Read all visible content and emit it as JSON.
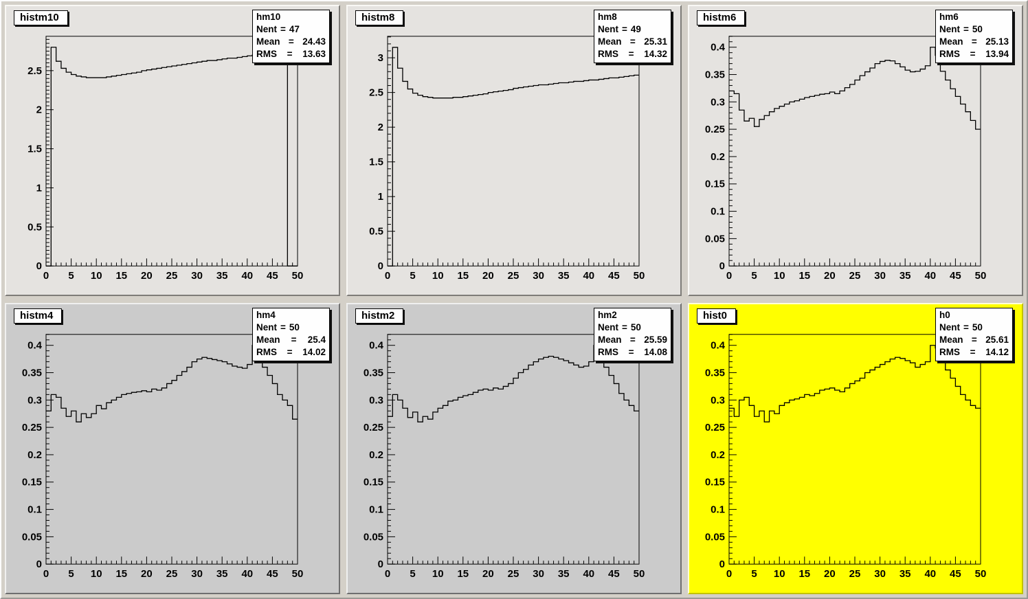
{
  "canvas": {
    "background": "#d4d0c8",
    "highlight_pad_color": "#ffff00",
    "line_color": "#000000",
    "box_background": "#ffffff"
  },
  "stats_labels": {
    "entries": "Nent",
    "mean": "Mean",
    "rms": "RMS",
    "eq": "="
  },
  "chart_data": [
    {
      "type": "line",
      "style": "step-histogram",
      "title": "histm10",
      "variant": "light",
      "stats": {
        "name": "hm10",
        "entries": "47",
        "mean": "24.43",
        "rms": "13.63"
      },
      "xlabel": "",
      "ylabel": "",
      "grid": false,
      "x": {
        "min": 0,
        "max": 50,
        "minor": 1,
        "major": 5,
        "labels": [
          [
            0,
            "0"
          ],
          [
            5,
            "5"
          ],
          [
            10,
            "10"
          ],
          [
            15,
            "15"
          ],
          [
            20,
            "20"
          ],
          [
            25,
            "25"
          ],
          [
            30,
            "30"
          ],
          [
            35,
            "35"
          ],
          [
            40,
            "40"
          ],
          [
            45,
            "45"
          ],
          [
            50,
            "50"
          ]
        ]
      },
      "y": {
        "min": 0,
        "max": 2.94,
        "minor": 0.05,
        "major": 0.5,
        "labels": [
          [
            0,
            "0"
          ],
          [
            0.5,
            "0.5"
          ],
          [
            1,
            "1"
          ],
          [
            1.5,
            "1.5"
          ],
          [
            2,
            "2"
          ],
          [
            2.5,
            "2.5"
          ]
        ]
      },
      "bins": [
        0,
        2.8,
        2.62,
        2.53,
        2.48,
        2.45,
        2.43,
        2.42,
        2.41,
        2.41,
        2.41,
        2.41,
        2.42,
        2.43,
        2.44,
        2.45,
        2.46,
        2.47,
        2.48,
        2.5,
        2.51,
        2.52,
        2.53,
        2.54,
        2.55,
        2.56,
        2.57,
        2.58,
        2.59,
        2.6,
        2.61,
        2.62,
        2.63,
        2.63,
        2.64,
        2.65,
        2.66,
        2.66,
        2.67,
        2.68,
        2.69,
        2.7,
        2.71,
        2.72,
        2.73,
        2.74,
        2.75,
        2.76,
        0,
        0
      ]
    },
    {
      "type": "line",
      "style": "step-histogram",
      "title": "histm8",
      "variant": "light",
      "stats": {
        "name": "hm8",
        "entries": "49",
        "mean": "25.31",
        "rms": "14.32"
      },
      "xlabel": "",
      "ylabel": "",
      "grid": false,
      "x": {
        "min": 0,
        "max": 50,
        "minor": 1,
        "major": 5,
        "labels": [
          [
            0,
            "0"
          ],
          [
            5,
            "5"
          ],
          [
            10,
            "10"
          ],
          [
            15,
            "15"
          ],
          [
            20,
            "20"
          ],
          [
            25,
            "25"
          ],
          [
            30,
            "30"
          ],
          [
            35,
            "35"
          ],
          [
            40,
            "40"
          ],
          [
            45,
            "45"
          ],
          [
            50,
            "50"
          ]
        ]
      },
      "y": {
        "min": 0,
        "max": 3.31,
        "minor": 0.1,
        "major": 0.5,
        "labels": [
          [
            0,
            "0"
          ],
          [
            0.5,
            "0.5"
          ],
          [
            1,
            "1"
          ],
          [
            1.5,
            "1.5"
          ],
          [
            2,
            "2"
          ],
          [
            2.5,
            "2.5"
          ],
          [
            3,
            "3"
          ]
        ]
      },
      "bins": [
        0,
        3.15,
        2.85,
        2.66,
        2.55,
        2.49,
        2.46,
        2.44,
        2.43,
        2.42,
        2.42,
        2.42,
        2.42,
        2.43,
        2.43,
        2.44,
        2.45,
        2.46,
        2.47,
        2.48,
        2.5,
        2.51,
        2.52,
        2.53,
        2.54,
        2.56,
        2.57,
        2.58,
        2.59,
        2.6,
        2.61,
        2.61,
        2.62,
        2.63,
        2.64,
        2.64,
        2.65,
        2.66,
        2.66,
        2.67,
        2.68,
        2.68,
        2.69,
        2.7,
        2.71,
        2.71,
        2.72,
        2.73,
        2.74,
        2.75
      ]
    },
    {
      "type": "line",
      "style": "step-histogram",
      "title": "histm6",
      "variant": "light",
      "stats": {
        "name": "hm6",
        "entries": "50",
        "mean": "25.13",
        "rms": "13.94"
      },
      "xlabel": "",
      "ylabel": "",
      "grid": false,
      "x": {
        "min": 0,
        "max": 50,
        "minor": 1,
        "major": 5,
        "labels": [
          [
            0,
            "0"
          ],
          [
            5,
            "5"
          ],
          [
            10,
            "10"
          ],
          [
            15,
            "15"
          ],
          [
            20,
            "20"
          ],
          [
            25,
            "25"
          ],
          [
            30,
            "30"
          ],
          [
            35,
            "35"
          ],
          [
            40,
            "40"
          ],
          [
            45,
            "45"
          ],
          [
            50,
            "50"
          ]
        ]
      },
      "y": {
        "min": 0,
        "max": 0.42,
        "minor": 0.01,
        "major": 0.05,
        "labels": [
          [
            0,
            "0"
          ],
          [
            0.05,
            "0.05"
          ],
          [
            0.1,
            "0.1"
          ],
          [
            0.15,
            "0.15"
          ],
          [
            0.2,
            "0.2"
          ],
          [
            0.25,
            "0.25"
          ],
          [
            0.3,
            "0.3"
          ],
          [
            0.35,
            "0.35"
          ],
          [
            0.4,
            "0.4"
          ]
        ]
      },
      "bins": [
        0.32,
        0.315,
        0.285,
        0.265,
        0.27,
        0.255,
        0.268,
        0.275,
        0.282,
        0.288,
        0.292,
        0.296,
        0.3,
        0.302,
        0.305,
        0.308,
        0.31,
        0.312,
        0.314,
        0.315,
        0.318,
        0.315,
        0.32,
        0.326,
        0.332,
        0.34,
        0.348,
        0.355,
        0.362,
        0.37,
        0.374,
        0.376,
        0.375,
        0.37,
        0.364,
        0.358,
        0.355,
        0.356,
        0.36,
        0.366,
        0.4,
        0.385,
        0.356,
        0.34,
        0.324,
        0.31,
        0.296,
        0.282,
        0.266,
        0.25
      ]
    },
    {
      "type": "line",
      "style": "step-histogram",
      "title": "histm4",
      "variant": "mid",
      "stats": {
        "name": "hm4",
        "entries": "50",
        "mean": "25.4",
        "rms": "14.02"
      },
      "xlabel": "",
      "ylabel": "",
      "grid": false,
      "x": {
        "min": 0,
        "max": 50,
        "minor": 1,
        "major": 5,
        "labels": [
          [
            0,
            "0"
          ],
          [
            5,
            "5"
          ],
          [
            10,
            "10"
          ],
          [
            15,
            "15"
          ],
          [
            20,
            "20"
          ],
          [
            25,
            "25"
          ],
          [
            30,
            "30"
          ],
          [
            35,
            "35"
          ],
          [
            40,
            "40"
          ],
          [
            45,
            "45"
          ],
          [
            50,
            "50"
          ]
        ]
      },
      "y": {
        "min": 0,
        "max": 0.42,
        "minor": 0.01,
        "major": 0.05,
        "labels": [
          [
            0,
            "0"
          ],
          [
            0.05,
            "0.05"
          ],
          [
            0.1,
            "0.1"
          ],
          [
            0.15,
            "0.15"
          ],
          [
            0.2,
            "0.2"
          ],
          [
            0.25,
            "0.25"
          ],
          [
            0.3,
            "0.3"
          ],
          [
            0.35,
            "0.35"
          ],
          [
            0.4,
            "0.4"
          ]
        ]
      },
      "bins": [
        0.28,
        0.31,
        0.305,
        0.285,
        0.27,
        0.28,
        0.26,
        0.275,
        0.268,
        0.275,
        0.29,
        0.284,
        0.295,
        0.3,
        0.305,
        0.31,
        0.312,
        0.314,
        0.315,
        0.317,
        0.315,
        0.32,
        0.318,
        0.322,
        0.33,
        0.336,
        0.345,
        0.352,
        0.36,
        0.37,
        0.375,
        0.378,
        0.376,
        0.374,
        0.372,
        0.37,
        0.366,
        0.362,
        0.36,
        0.358,
        0.365,
        0.4,
        0.39,
        0.36,
        0.345,
        0.33,
        0.31,
        0.3,
        0.29,
        0.265
      ]
    },
    {
      "type": "line",
      "style": "step-histogram",
      "title": "histm2",
      "variant": "mid",
      "stats": {
        "name": "hm2",
        "entries": "50",
        "mean": "25.59",
        "rms": "14.08"
      },
      "xlabel": "",
      "ylabel": "",
      "grid": false,
      "x": {
        "min": 0,
        "max": 50,
        "minor": 1,
        "major": 5,
        "labels": [
          [
            0,
            "0"
          ],
          [
            5,
            "5"
          ],
          [
            10,
            "10"
          ],
          [
            15,
            "15"
          ],
          [
            20,
            "20"
          ],
          [
            25,
            "25"
          ],
          [
            30,
            "30"
          ],
          [
            35,
            "35"
          ],
          [
            40,
            "40"
          ],
          [
            45,
            "45"
          ],
          [
            50,
            "50"
          ]
        ]
      },
      "y": {
        "min": 0,
        "max": 0.42,
        "minor": 0.01,
        "major": 0.05,
        "labels": [
          [
            0,
            "0"
          ],
          [
            0.05,
            "0.05"
          ],
          [
            0.1,
            "0.1"
          ],
          [
            0.15,
            "0.15"
          ],
          [
            0.2,
            "0.2"
          ],
          [
            0.25,
            "0.25"
          ],
          [
            0.3,
            "0.3"
          ],
          [
            0.35,
            "0.35"
          ],
          [
            0.4,
            "0.4"
          ]
        ]
      },
      "bins": [
        0.27,
        0.31,
        0.3,
        0.285,
        0.268,
        0.278,
        0.26,
        0.27,
        0.265,
        0.278,
        0.285,
        0.29,
        0.298,
        0.3,
        0.305,
        0.308,
        0.31,
        0.314,
        0.318,
        0.32,
        0.318,
        0.322,
        0.32,
        0.325,
        0.33,
        0.34,
        0.35,
        0.356,
        0.364,
        0.37,
        0.375,
        0.378,
        0.38,
        0.378,
        0.375,
        0.372,
        0.368,
        0.364,
        0.36,
        0.362,
        0.37,
        0.4,
        0.385,
        0.36,
        0.345,
        0.33,
        0.312,
        0.3,
        0.29,
        0.28
      ]
    },
    {
      "type": "line",
      "style": "step-histogram",
      "title": "hist0",
      "variant": "yellow",
      "stats": {
        "name": "h0",
        "entries": "50",
        "mean": "25.61",
        "rms": "14.12"
      },
      "xlabel": "",
      "ylabel": "",
      "grid": false,
      "x": {
        "min": 0,
        "max": 50,
        "minor": 1,
        "major": 5,
        "labels": [
          [
            0,
            "0"
          ],
          [
            5,
            "5"
          ],
          [
            10,
            "10"
          ],
          [
            15,
            "15"
          ],
          [
            20,
            "20"
          ],
          [
            25,
            "25"
          ],
          [
            30,
            "30"
          ],
          [
            35,
            "35"
          ],
          [
            40,
            "40"
          ],
          [
            45,
            "45"
          ],
          [
            50,
            "50"
          ]
        ]
      },
      "y": {
        "min": 0,
        "max": 0.42,
        "minor": 0.01,
        "major": 0.05,
        "labels": [
          [
            0,
            "0"
          ],
          [
            0.05,
            "0.05"
          ],
          [
            0.1,
            "0.1"
          ],
          [
            0.15,
            "0.15"
          ],
          [
            0.2,
            "0.2"
          ],
          [
            0.25,
            "0.25"
          ],
          [
            0.3,
            "0.3"
          ],
          [
            0.35,
            "0.35"
          ],
          [
            0.4,
            "0.4"
          ]
        ]
      },
      "bins": [
        0.285,
        0.27,
        0.3,
        0.305,
        0.29,
        0.27,
        0.28,
        0.26,
        0.28,
        0.275,
        0.29,
        0.295,
        0.3,
        0.302,
        0.305,
        0.31,
        0.308,
        0.312,
        0.318,
        0.32,
        0.322,
        0.318,
        0.315,
        0.322,
        0.33,
        0.335,
        0.34,
        0.35,
        0.355,
        0.36,
        0.365,
        0.37,
        0.375,
        0.378,
        0.376,
        0.372,
        0.368,
        0.36,
        0.365,
        0.37,
        0.4,
        0.395,
        0.375,
        0.355,
        0.34,
        0.325,
        0.31,
        0.3,
        0.29,
        0.285
      ]
    }
  ]
}
